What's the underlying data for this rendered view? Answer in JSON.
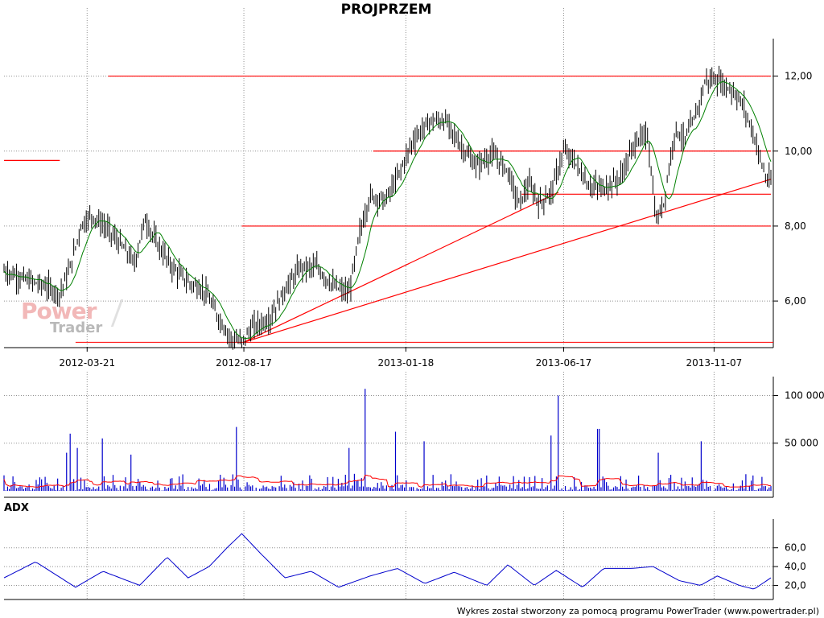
{
  "title": "PROJPRZEM",
  "adx_label": "ADX",
  "footer": "Wykres został stworzony za pomocą programu PowerTrader (www.powertrader.pl)",
  "logo": {
    "word1": "Power",
    "word2": "Trader"
  },
  "colors": {
    "price": "#000000",
    "ma": "#008000",
    "levels": "#ff0000",
    "volume": "#0000cc",
    "volume_ma": "#ff0000",
    "adx": "#0000cc",
    "grid": "#808080"
  },
  "chart_data": [
    {
      "type": "line",
      "name": "price",
      "x_tick_labels": [
        "2012-03-21",
        "2012-08-17",
        "2013-01-18",
        "2013-06-17",
        "2013-11-07"
      ],
      "y_tick_labels": [
        "6,00",
        "8,00",
        "10,00",
        "12,00"
      ],
      "y_ticks": [
        6,
        8,
        10,
        12
      ],
      "ylim": [
        4.8,
        13.0
      ],
      "date_range": [
        "2012-01-02",
        "2013-12-31"
      ],
      "grid": true,
      "price_points": [
        [
          "2012-01-02",
          6.8
        ],
        [
          "2012-01-20",
          6.6
        ],
        [
          "2012-02-10",
          6.4
        ],
        [
          "2012-02-24",
          6.2
        ],
        [
          "2012-03-05",
          6.9
        ],
        [
          "2012-03-15",
          8.0
        ],
        [
          "2012-03-25",
          8.3
        ],
        [
          "2012-04-10",
          7.9
        ],
        [
          "2012-04-25",
          7.4
        ],
        [
          "2012-05-05",
          7.0
        ],
        [
          "2012-05-15",
          8.2
        ],
        [
          "2012-05-25",
          7.6
        ],
        [
          "2012-06-10",
          6.9
        ],
        [
          "2012-06-25",
          6.5
        ],
        [
          "2012-07-10",
          6.3
        ],
        [
          "2012-07-25",
          5.5
        ],
        [
          "2012-08-05",
          5.0
        ],
        [
          "2012-08-15",
          4.9
        ],
        [
          "2012-08-25",
          5.3
        ],
        [
          "2012-09-10",
          5.5
        ],
        [
          "2012-09-25",
          6.3
        ],
        [
          "2012-10-10",
          6.9
        ],
        [
          "2012-10-25",
          6.9
        ],
        [
          "2012-11-10",
          6.4
        ],
        [
          "2012-11-25",
          6.2
        ],
        [
          "2012-12-05",
          7.8
        ],
        [
          "2012-12-15",
          8.8
        ],
        [
          "2012-12-30",
          8.7
        ],
        [
          "2013-01-10",
          9.3
        ],
        [
          "2013-01-25",
          10.3
        ],
        [
          "2013-02-10",
          10.8
        ],
        [
          "2013-02-25",
          10.8
        ],
        [
          "2013-03-10",
          10.2
        ],
        [
          "2013-03-25",
          9.6
        ],
        [
          "2013-04-10",
          9.9
        ],
        [
          "2013-04-25",
          9.5
        ],
        [
          "2013-05-05",
          8.6
        ],
        [
          "2013-05-15",
          9.1
        ],
        [
          "2013-05-25",
          8.6
        ],
        [
          "2013-06-05",
          8.9
        ],
        [
          "2013-06-17",
          10.0
        ],
        [
          "2013-06-28",
          9.7
        ],
        [
          "2013-07-10",
          9.1
        ],
        [
          "2013-07-25",
          9.0
        ],
        [
          "2013-08-10",
          9.3
        ],
        [
          "2013-08-25",
          10.3
        ],
        [
          "2013-09-05",
          10.4
        ],
        [
          "2013-09-13",
          8.1
        ],
        [
          "2013-09-20",
          8.6
        ],
        [
          "2013-10-01",
          10.6
        ],
        [
          "2013-10-10",
          10.3
        ],
        [
          "2013-10-20",
          10.9
        ],
        [
          "2013-10-30",
          11.9
        ],
        [
          "2013-11-10",
          11.9
        ],
        [
          "2013-11-25",
          11.6
        ],
        [
          "2013-12-05",
          11.2
        ],
        [
          "2013-12-15",
          10.4
        ],
        [
          "2013-12-27",
          9.2
        ]
      ],
      "horizontal_levels": [
        {
          "value": 9.75,
          "from": "2012-01-02",
          "to": "2012-02-24"
        },
        {
          "value": 12.0,
          "from": "2012-04-10",
          "to": "2013-12-31"
        },
        {
          "value": 10.0,
          "from": "2012-12-18",
          "to": "2013-12-31"
        },
        {
          "value": 8.85,
          "from": "2013-05-08",
          "to": "2013-12-31"
        },
        {
          "value": 8.0,
          "from": "2012-08-15",
          "to": "2013-12-31"
        }
      ],
      "trend_lines": [
        {
          "from": [
            "2012-08-17",
            4.9
          ],
          "to": [
            "2013-06-12",
            8.9
          ]
        },
        {
          "from": [
            "2012-08-17",
            4.9
          ],
          "to": [
            "2013-12-31",
            9.25
          ]
        }
      ]
    },
    {
      "type": "bar",
      "name": "volume",
      "y_tick_labels": [
        "50 000",
        "100 000"
      ],
      "y_ticks": [
        50000,
        100000
      ],
      "ylim": [
        0,
        108000
      ],
      "spikes": [
        [
          "2012-03-01",
          40000
        ],
        [
          "2012-03-05",
          60000
        ],
        [
          "2012-03-12",
          45000
        ],
        [
          "2012-04-05",
          55000
        ],
        [
          "2012-05-01",
          38000
        ],
        [
          "2012-08-10",
          67000
        ],
        [
          "2012-11-25",
          45000
        ],
        [
          "2012-12-10",
          107000
        ],
        [
          "2013-01-08",
          62000
        ],
        [
          "2013-02-05",
          52000
        ],
        [
          "2013-06-05",
          58000
        ],
        [
          "2013-06-12",
          100000
        ],
        [
          "2013-07-20",
          65000
        ],
        [
          "2013-09-15",
          40000
        ],
        [
          "2013-10-25",
          52000
        ]
      ],
      "moving_average_levels": [
        3000,
        12000,
        23000,
        10000,
        5000,
        14000,
        8000,
        6000
      ]
    },
    {
      "type": "line",
      "name": "ADX",
      "y_tick_labels": [
        "20,0",
        "40,0",
        "60,0"
      ],
      "y_ticks": [
        20,
        40,
        60
      ],
      "ylim": [
        5,
        82
      ],
      "points": [
        [
          "2012-01-02",
          28
        ],
        [
          "2012-02-01",
          45
        ],
        [
          "2012-03-10",
          18
        ],
        [
          "2012-04-05",
          35
        ],
        [
          "2012-05-10",
          20
        ],
        [
          "2012-06-05",
          50
        ],
        [
          "2012-06-25",
          28
        ],
        [
          "2012-07-15",
          40
        ],
        [
          "2012-08-01",
          60
        ],
        [
          "2012-08-15",
          75
        ],
        [
          "2012-09-01",
          55
        ],
        [
          "2012-09-25",
          28
        ],
        [
          "2012-10-20",
          35
        ],
        [
          "2012-11-15",
          18
        ],
        [
          "2012-12-15",
          30
        ],
        [
          "2013-01-10",
          38
        ],
        [
          "2013-02-05",
          22
        ],
        [
          "2013-03-05",
          34
        ],
        [
          "2013-04-05",
          20
        ],
        [
          "2013-04-25",
          42
        ],
        [
          "2013-05-20",
          20
        ],
        [
          "2013-06-10",
          36
        ],
        [
          "2013-07-05",
          18
        ],
        [
          "2013-07-25",
          38
        ],
        [
          "2013-08-20",
          38
        ],
        [
          "2013-09-10",
          40
        ],
        [
          "2013-10-05",
          25
        ],
        [
          "2013-10-25",
          20
        ],
        [
          "2013-11-10",
          30
        ],
        [
          "2013-12-01",
          20
        ],
        [
          "2013-12-15",
          16
        ],
        [
          "2013-12-31",
          28
        ]
      ]
    }
  ]
}
